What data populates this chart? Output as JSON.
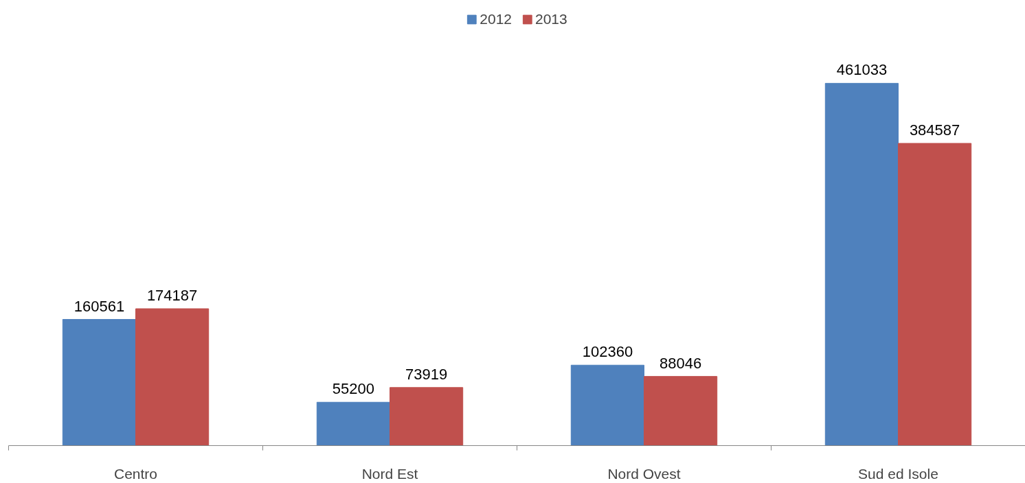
{
  "chart_data": {
    "type": "bar",
    "categories": [
      "Centro",
      "Nord Est",
      "Nord Ovest",
      "Sud ed Isole"
    ],
    "series": [
      {
        "name": "2012",
        "color": "#4f81bd",
        "values": [
          160561,
          55200,
          102360,
          461033
        ]
      },
      {
        "name": "2013",
        "color": "#c0504d",
        "values": [
          174187,
          73919,
          88046,
          384587
        ]
      }
    ],
    "data_labels": true,
    "legend": "top",
    "grid": false
  }
}
